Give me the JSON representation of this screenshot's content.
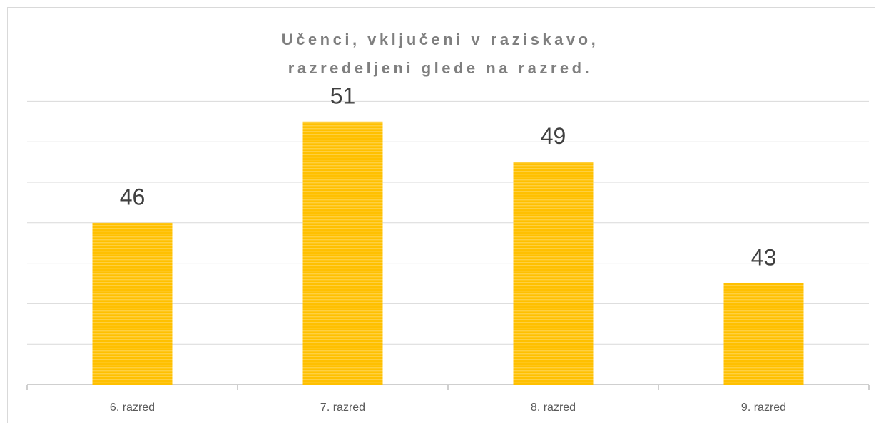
{
  "chart_data": {
    "type": "bar",
    "title": "Učenci, vključeni v raziskavo, razredeljeni glede na razred.",
    "categories": [
      "6. razred",
      "7. razred",
      "8. razred",
      "9. razred"
    ],
    "values": [
      46,
      51,
      49,
      43
    ],
    "color": "#ffc000",
    "ylim": [
      38,
      52
    ],
    "yticks": [
      40,
      42,
      44,
      46,
      48,
      50,
      52
    ],
    "grid": true
  }
}
